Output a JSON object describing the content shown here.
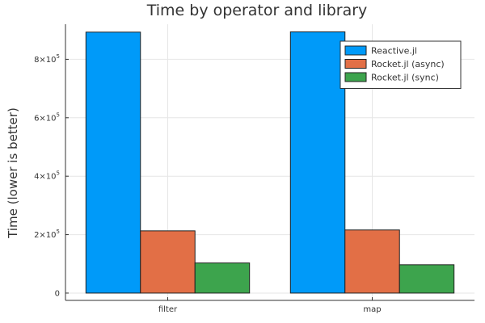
{
  "chart_data": {
    "type": "bar",
    "title": "Time by operator and library",
    "xlabel": "",
    "ylabel": "Time (lower is better)",
    "categories": [
      "filter",
      "map"
    ],
    "series": [
      {
        "name": "Reactive.jl",
        "color": "#009af9",
        "values": [
          893000,
          894000
        ]
      },
      {
        "name": "Rocket.jl (async)",
        "color": "#e26f46",
        "values": [
          213000,
          216000
        ]
      },
      {
        "name": "Rocket.jl (sync)",
        "color": "#3da44d",
        "values": [
          103000,
          97000
        ]
      }
    ],
    "ylim": [
      -25000,
      920000
    ],
    "yticks": [
      {
        "value": 0,
        "mantissa": "0",
        "exponent": ""
      },
      {
        "value": 200000,
        "mantissa": "2×10",
        "exponent": "5"
      },
      {
        "value": 400000,
        "mantissa": "4×10",
        "exponent": "5"
      },
      {
        "value": 600000,
        "mantissa": "6×10",
        "exponent": "5"
      },
      {
        "value": 800000,
        "mantissa": "8×10",
        "exponent": "5"
      }
    ],
    "grid": true,
    "legend_position": "top-right"
  }
}
